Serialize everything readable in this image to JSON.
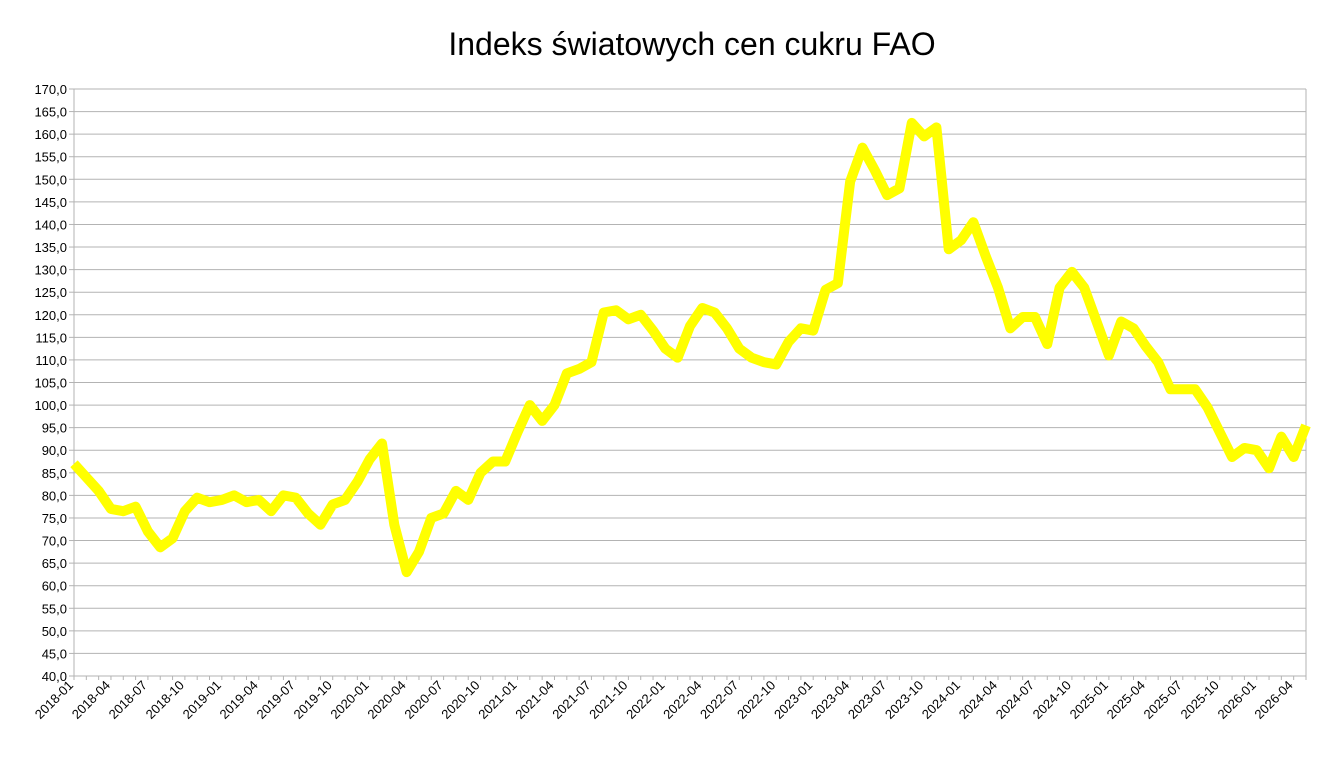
{
  "chart_data": {
    "type": "line",
    "title": "Indeks światowych cen cukru FAO",
    "categories": [
      "2018-01",
      null,
      null,
      "2018-04",
      null,
      null,
      "2018-07",
      null,
      null,
      "2018-10",
      null,
      null,
      "2019-01",
      null,
      null,
      "2019-04",
      null,
      null,
      "2019-07",
      null,
      null,
      "2019-10",
      null,
      null,
      "2020-01",
      null,
      null,
      "2020-04",
      null,
      null,
      "2020-07",
      null,
      null,
      "2020-10",
      null,
      null,
      "2021-01",
      null,
      null,
      "2021-04",
      null,
      null,
      "2021-07",
      null,
      null,
      "2021-10",
      null,
      null,
      "2022-01",
      null,
      null,
      "2022-04",
      null,
      null,
      "2022-07",
      null,
      null,
      "2022-10",
      null,
      null,
      "2023-01",
      null,
      null,
      "2023-04",
      null,
      null,
      "2023-07",
      null,
      null,
      "2023-10",
      null,
      null,
      "2024-01",
      null,
      null,
      "2024-04",
      null,
      null,
      "2024-07",
      null,
      null,
      "2024-10",
      null,
      null,
      "2025-01",
      null,
      null,
      "2025-04",
      null,
      null,
      "2025-07",
      null,
      null,
      "2025-10",
      null,
      null,
      "2026-01",
      null,
      null,
      "2026-04",
      null
    ],
    "values": [
      87,
      84,
      81,
      77,
      76.5,
      77.5,
      72,
      68.5,
      70.5,
      76.5,
      79.5,
      78.5,
      79,
      80,
      78.5,
      79,
      76.5,
      80,
      79.5,
      76,
      73.5,
      78,
      79,
      83,
      88,
      91.5,
      73.5,
      63,
      67.5,
      75,
      76,
      81,
      79,
      85,
      87.5,
      87.5,
      94,
      100,
      96.5,
      100,
      107,
      108,
      109.5,
      120.5,
      121,
      119,
      120,
      116.5,
      112.5,
      110.5,
      117.5,
      121.5,
      120.5,
      117,
      112.5,
      110.5,
      109.5,
      109,
      114,
      117,
      116.5,
      125.5,
      127,
      149.5,
      157,
      152,
      146.5,
      148,
      162.5,
      159.5,
      161.5,
      134.5,
      136.5,
      140.5,
      133,
      126,
      117,
      119.5,
      119.5,
      113.5,
      126,
      129.5,
      126,
      118.5,
      111,
      118.5,
      117,
      113,
      109.5,
      103.5,
      103.5,
      103.5,
      99.5,
      94,
      88.5,
      90.5,
      90,
      86,
      93,
      88.5,
      95.5
    ],
    "color": "#ffff00",
    "ylim": [
      40,
      170
    ],
    "yticks": [
      {
        "value": 40,
        "label": "40,0"
      },
      {
        "value": 45,
        "label": "45,0"
      },
      {
        "value": 50,
        "label": "50,0"
      },
      {
        "value": 55,
        "label": "55,0"
      },
      {
        "value": 60,
        "label": "60,0"
      },
      {
        "value": 65,
        "label": "65,0"
      },
      {
        "value": 70,
        "label": "70,0"
      },
      {
        "value": 75,
        "label": "75,0"
      },
      {
        "value": 80,
        "label": "80,0"
      },
      {
        "value": 85,
        "label": "85,0"
      },
      {
        "value": 90,
        "label": "90,0"
      },
      {
        "value": 95,
        "label": "95,0"
      },
      {
        "value": 100,
        "label": "100,0"
      },
      {
        "value": 105,
        "label": "105,0"
      },
      {
        "value": 110,
        "label": "110,0"
      },
      {
        "value": 115,
        "label": "115,0"
      },
      {
        "value": 120,
        "label": "120,0"
      },
      {
        "value": 125,
        "label": "125,0"
      },
      {
        "value": 130,
        "label": "130,0"
      },
      {
        "value": 135,
        "label": "135,0"
      },
      {
        "value": 140,
        "label": "140,0"
      },
      {
        "value": 145,
        "label": "145,0"
      },
      {
        "value": 150,
        "label": "150,0"
      },
      {
        "value": 155,
        "label": "155,0"
      },
      {
        "value": 160,
        "label": "160,0"
      },
      {
        "value": 165,
        "label": "165,0"
      },
      {
        "value": 170,
        "label": "170,0"
      }
    ],
    "grid": true
  }
}
